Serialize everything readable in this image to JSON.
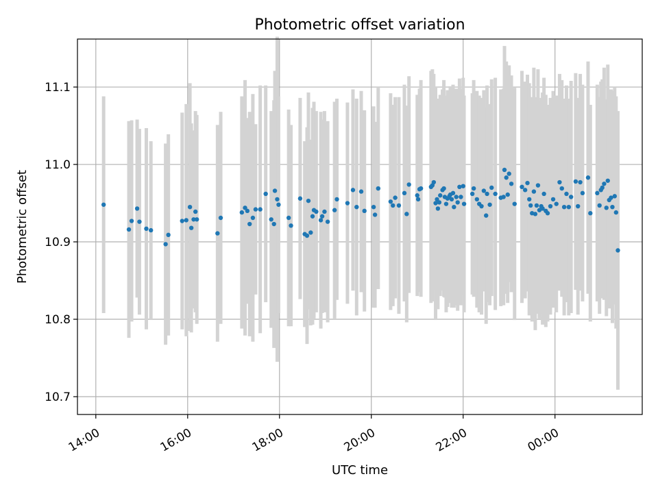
{
  "chart_data": {
    "type": "scatter",
    "title": "Photometric offset variation",
    "xlabel": "UTC time",
    "ylabel": "Photometric offset",
    "x_ticks": [
      "14:00",
      "16:00",
      "18:00",
      "20:00",
      "22:00",
      "00:00"
    ],
    "x_tick_hours": [
      14,
      16,
      18,
      20,
      22,
      24
    ],
    "xlim_hours": [
      13.6,
      25.9
    ],
    "y_ticks": [
      "10.7",
      "10.8",
      "10.9",
      "11.0",
      "11.1"
    ],
    "y_tick_values": [
      10.7,
      10.8,
      10.9,
      11.0,
      11.1
    ],
    "ylim": [
      10.677,
      11.162
    ],
    "grid": true,
    "colors": {
      "points": "#1f77b4",
      "errorbars": "#d3d3d3",
      "grid": "#b0b0b0"
    },
    "series": [
      {
        "x_hours": [
          14.17,
          14.72,
          14.78,
          14.9,
          14.95,
          15.1,
          15.2,
          15.52,
          15.58,
          15.88,
          15.97,
          16.05,
          16.08,
          16.13,
          16.17,
          16.2,
          16.65,
          16.72,
          17.18,
          17.25,
          17.3,
          17.35,
          17.42,
          17.48,
          17.58,
          17.7,
          17.82,
          17.88,
          17.9,
          17.95,
          17.98,
          18.2,
          18.25,
          18.45,
          18.55,
          18.6,
          18.63,
          18.68,
          18.72,
          18.75,
          18.8,
          18.9,
          18.93,
          18.98,
          19.05,
          19.2,
          19.25,
          19.48,
          19.6,
          19.68,
          19.78,
          19.85,
          20.05,
          20.08,
          20.15,
          20.42,
          20.47,
          20.52,
          20.6,
          20.72,
          20.77,
          20.82,
          21.0,
          21.02,
          21.05,
          21.08,
          21.3,
          21.33,
          21.36,
          21.4,
          21.43,
          21.45,
          21.48,
          21.5,
          21.55,
          21.58,
          21.6,
          21.63,
          21.66,
          21.7,
          21.72,
          21.75,
          21.78,
          21.8,
          21.85,
          21.88,
          21.92,
          21.95,
          22.0,
          22.02,
          22.2,
          22.23,
          22.3,
          22.35,
          22.4,
          22.45,
          22.5,
          22.52,
          22.58,
          22.62,
          22.7,
          22.82,
          22.88,
          22.9,
          22.94,
          22.97,
          23.0,
          23.05,
          23.12,
          23.28,
          23.35,
          23.4,
          23.44,
          23.47,
          23.5,
          23.54,
          23.57,
          23.6,
          23.63,
          23.66,
          23.7,
          23.73,
          23.76,
          23.8,
          23.84,
          23.9,
          23.96,
          24.03,
          24.1,
          24.15,
          24.2,
          24.25,
          24.3,
          24.35,
          24.45,
          24.5,
          24.55,
          24.6,
          24.72,
          24.77,
          24.92,
          24.97,
          25.0,
          25.03,
          25.07,
          25.12,
          25.15,
          25.18,
          25.22,
          25.25,
          25.3,
          25.33,
          25.37
        ],
        "y": [
          10.948,
          10.916,
          10.927,
          10.943,
          10.926,
          10.917,
          10.915,
          10.897,
          10.909,
          10.927,
          10.928,
          10.945,
          10.918,
          10.929,
          10.939,
          10.929,
          10.911,
          10.931,
          10.938,
          10.944,
          10.94,
          10.923,
          10.931,
          10.942,
          10.942,
          10.962,
          10.929,
          10.923,
          10.966,
          10.955,
          10.948,
          10.931,
          10.921,
          10.956,
          10.91,
          10.908,
          10.953,
          10.912,
          10.933,
          10.941,
          10.939,
          10.928,
          10.933,
          10.939,
          10.926,
          10.941,
          10.955,
          10.95,
          10.967,
          10.945,
          10.965,
          10.94,
          10.945,
          10.935,
          10.969,
          10.952,
          10.947,
          10.957,
          10.947,
          10.963,
          10.936,
          10.974,
          10.96,
          10.955,
          10.968,
          10.969,
          10.971,
          10.973,
          10.977,
          10.95,
          10.955,
          10.943,
          10.951,
          10.96,
          10.967,
          10.969,
          10.958,
          10.949,
          10.956,
          10.959,
          10.961,
          10.955,
          10.963,
          10.945,
          10.958,
          10.951,
          10.971,
          10.958,
          10.972,
          10.949,
          10.962,
          10.969,
          10.955,
          10.949,
          10.946,
          10.966,
          10.934,
          10.962,
          10.948,
          10.97,
          10.962,
          10.957,
          10.958,
          10.993,
          10.983,
          10.961,
          10.988,
          10.975,
          10.949,
          10.971,
          10.967,
          10.976,
          10.955,
          10.947,
          10.937,
          10.965,
          10.936,
          10.947,
          10.973,
          10.941,
          10.946,
          10.943,
          10.962,
          10.94,
          10.937,
          10.946,
          10.955,
          10.949,
          10.977,
          10.969,
          10.945,
          10.962,
          10.945,
          10.958,
          10.978,
          10.946,
          10.977,
          10.963,
          10.983,
          10.937,
          10.963,
          10.947,
          10.967,
          10.97,
          10.975,
          10.944,
          10.979,
          10.954,
          10.957,
          10.945,
          10.959,
          10.938,
          10.889
        ],
        "yerr": [
          0.14,
          0.14,
          0.13,
          0.115,
          0.12,
          0.13,
          0.115,
          0.13,
          0.13,
          0.14,
          0.15,
          0.16,
          0.135,
          0.115,
          0.13,
          0.135,
          0.14,
          0.137,
          0.15,
          0.165,
          0.12,
          0.145,
          0.16,
          0.11,
          0.16,
          0.14,
          0.14,
          0.16,
          0.155,
          0.21,
          0.14,
          0.14,
          0.13,
          0.13,
          0.12,
          0.14,
          0.14,
          0.12,
          0.14,
          0.14,
          0.13,
          0.14,
          0.125,
          0.13,
          0.13,
          0.14,
          0.13,
          0.13,
          0.13,
          0.14,
          0.13,
          0.13,
          0.13,
          0.12,
          0.13,
          0.14,
          0.13,
          0.13,
          0.14,
          0.14,
          0.14,
          0.14,
          0.13,
          0.12,
          0.13,
          0.14,
          0.15,
          0.15,
          0.14,
          0.15,
          0.13,
          0.13,
          0.12,
          0.13,
          0.13,
          0.14,
          0.13,
          0.14,
          0.14,
          0.13,
          0.14,
          0.14,
          0.14,
          0.13,
          0.14,
          0.14,
          0.14,
          0.14,
          0.14,
          0.14,
          0.13,
          0.14,
          0.14,
          0.14,
          0.14,
          0.13,
          0.14,
          0.14,
          0.13,
          0.14,
          0.15,
          0.14,
          0.14,
          0.16,
          0.15,
          0.14,
          0.14,
          0.14,
          0.15,
          0.15,
          0.14,
          0.14,
          0.15,
          0.14,
          0.14,
          0.16,
          0.15,
          0.14,
          0.15,
          0.14,
          0.14,
          0.15,
          0.15,
          0.15,
          0.14,
          0.14,
          0.14,
          0.14,
          0.14,
          0.14,
          0.14,
          0.14,
          0.14,
          0.15,
          0.14,
          0.14,
          0.14,
          0.14,
          0.15,
          0.14,
          0.14,
          0.14,
          0.14,
          0.14,
          0.15,
          0.14,
          0.15,
          0.14,
          0.14,
          0.15,
          0.14,
          0.15,
          0.18
        ]
      }
    ]
  }
}
